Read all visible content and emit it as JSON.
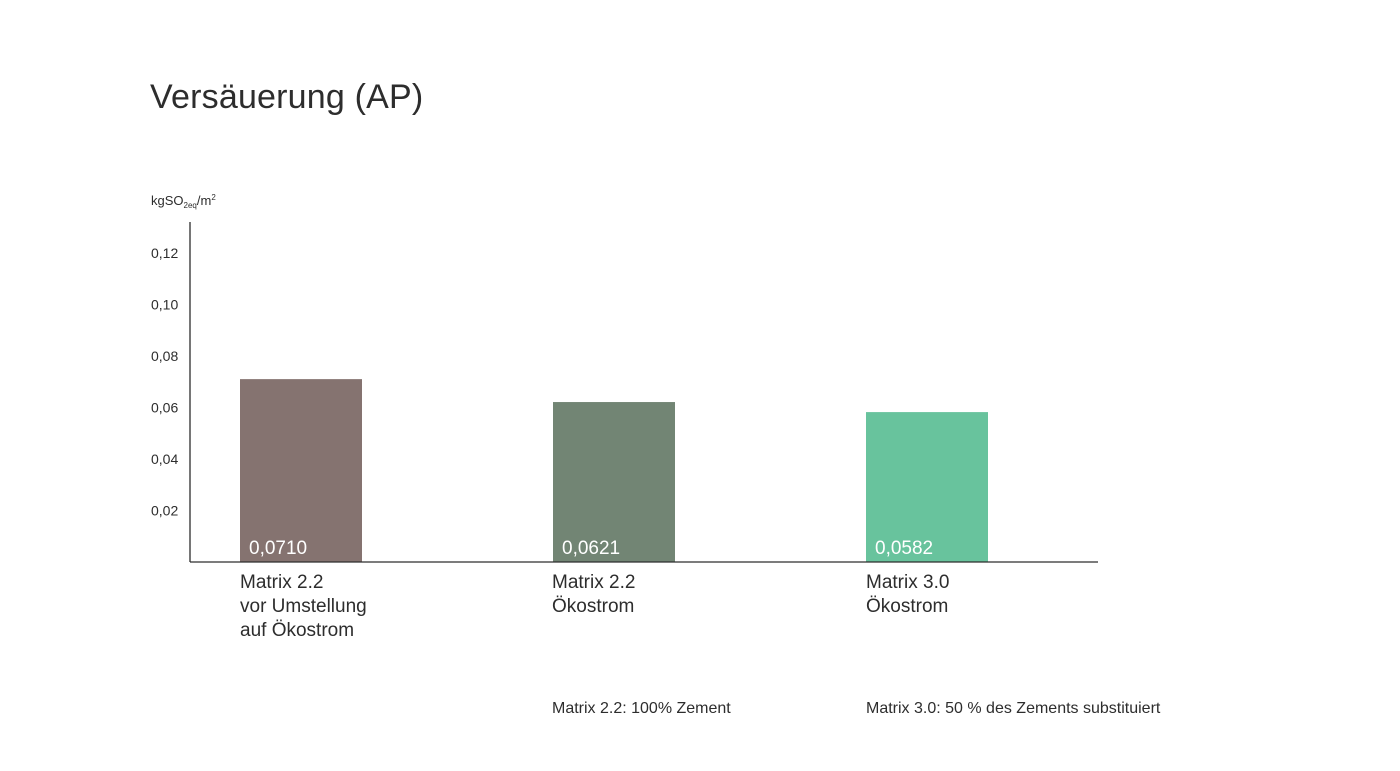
{
  "page": {
    "title": "Versäuerung (AP)"
  },
  "chart_data": {
    "type": "bar",
    "title": "Versäuerung (AP)",
    "ylabel": {
      "base": "kgSO",
      "sub": "2eq",
      "mid": "/m",
      "sup": "2"
    },
    "ylim": [
      0,
      0.132
    ],
    "yticks": [
      {
        "value": 0.02,
        "label": "0,02"
      },
      {
        "value": 0.04,
        "label": "0,04"
      },
      {
        "value": 0.06,
        "label": "0,06"
      },
      {
        "value": 0.08,
        "label": "0,08"
      },
      {
        "value": 0.1,
        "label": "0,10"
      },
      {
        "value": 0.12,
        "label": "0,12"
      }
    ],
    "categories": [
      "Matrix 2.2\nvor Umstellung\nauf Ökostrom",
      "Matrix 2.2\nÖkostrom",
      "Matrix 3.0\nÖkostrom"
    ],
    "values": [
      0.071,
      0.0621,
      0.0582
    ],
    "value_labels": [
      "0,0710",
      "0,0621",
      "0,0582"
    ],
    "colors": [
      "#857370",
      "#728574",
      "#68c39d"
    ],
    "grid": false,
    "legend": "none"
  },
  "notes": [
    "Matrix 2.2: 100% Zement",
    "Matrix 3.0: 50 % des Zements substituiert"
  ]
}
